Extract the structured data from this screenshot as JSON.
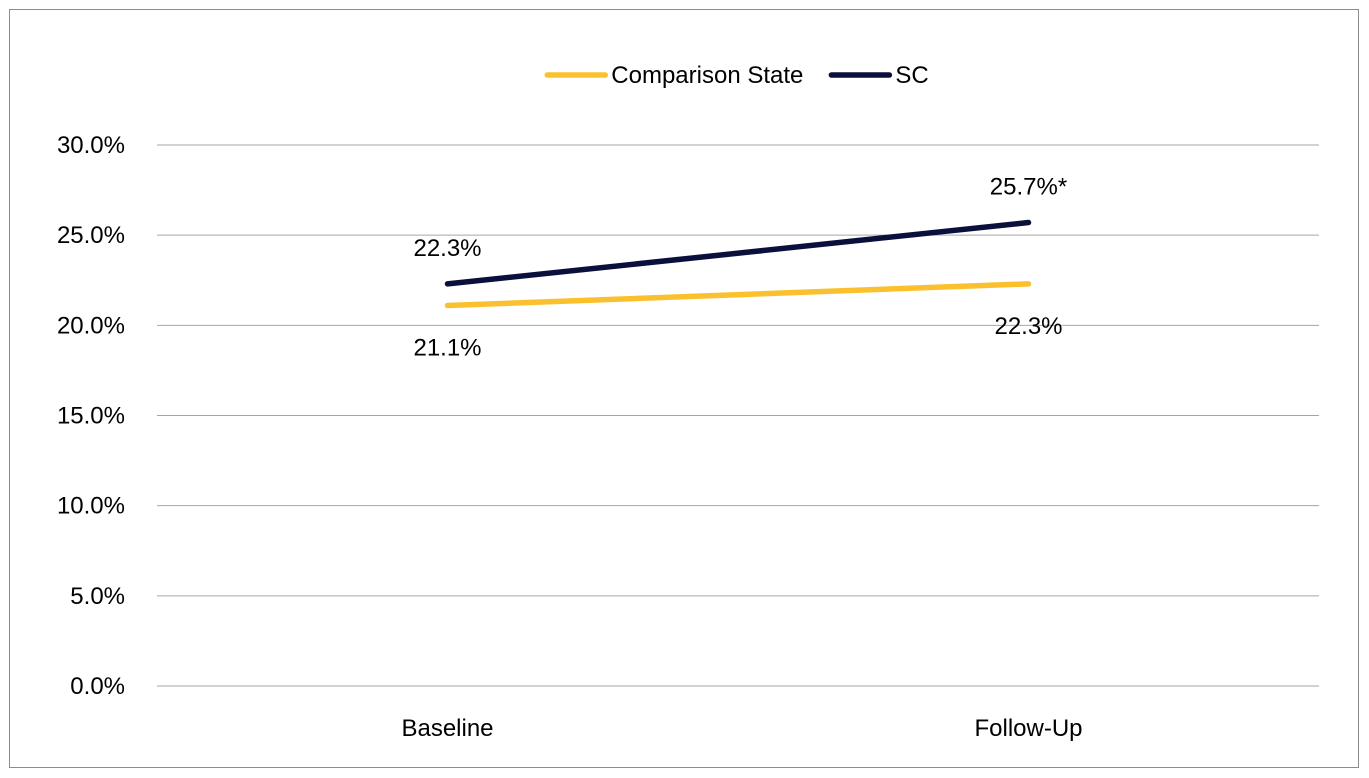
{
  "chart_data": {
    "type": "line",
    "title": "",
    "xlabel": "",
    "ylabel": "",
    "categories": [
      "Baseline",
      "Follow-Up"
    ],
    "series": [
      {
        "name": "Comparison State",
        "values": [
          21.1,
          22.3
        ],
        "labels": [
          "21.1%",
          "22.3%"
        ],
        "color": "#FBC02D"
      },
      {
        "name": "SC",
        "values": [
          22.3,
          25.7
        ],
        "labels": [
          "22.3%",
          "25.7%*"
        ],
        "color": "#0A0F3C"
      }
    ],
    "yticks": [
      "0.0%",
      "5.0%",
      "10.0%",
      "15.0%",
      "20.0%",
      "25.0%",
      "30.0%"
    ],
    "ylim": [
      0,
      30
    ],
    "grid": true,
    "legend_position": "top"
  }
}
